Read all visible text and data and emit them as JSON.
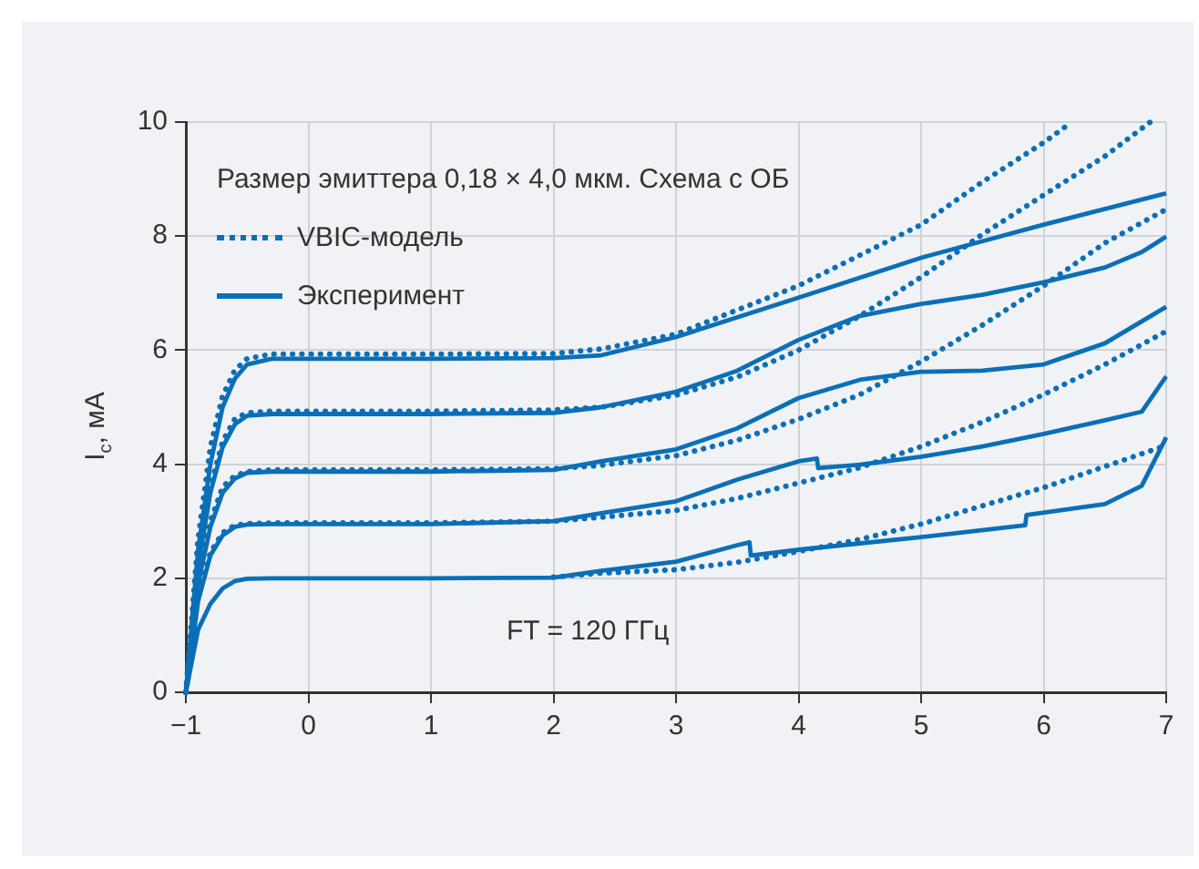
{
  "chart_data": {
    "type": "line",
    "title": "Размер эмиттера 0,18 × 4,0 мкм. Схема с ОБ",
    "ylabel": "I$_{c}$, мА",
    "xlim": [
      -1,
      7
    ],
    "xticks": [
      {
        "value": -1,
        "label": "−1"
      },
      0,
      1,
      2,
      3,
      4,
      5,
      6,
      7
    ],
    "ylim": [
      0,
      10
    ],
    "yticks": [
      0,
      2,
      4,
      6,
      8,
      10
    ],
    "grid": true,
    "legend": "top left",
    "marker": "none",
    "annotations": [
      "FT = 120 ГГц"
    ],
    "series": [
      {
        "name": "VBIC-модель",
        "color": "#0b6fb8",
        "line_style": "dotted",
        "x": [
          -1,
          -0.9,
          -0.8,
          -0.7,
          -0.6,
          -0.5,
          -0.3,
          0,
          1,
          2,
          2.39,
          3,
          4,
          5,
          5.5,
          6,
          6.23
        ],
        "values": [
          0,
          2.7,
          4.3,
          5.2,
          5.65,
          5.85,
          5.93,
          5.93,
          5.93,
          5.94,
          6.02,
          6.28,
          7.13,
          8.2,
          8.95,
          9.64,
          10
        ]
      },
      {
        "name": "Эксперимент",
        "color": "#0b6fb8",
        "line_style": "solid",
        "x": [
          -1,
          -0.9,
          -0.8,
          -0.7,
          -0.6,
          -0.5,
          -0.3,
          0,
          1,
          2,
          2.39,
          3,
          4,
          5,
          6,
          7
        ],
        "values": [
          0,
          2.5,
          4.0,
          5.0,
          5.5,
          5.75,
          5.85,
          5.85,
          5.85,
          5.86,
          5.91,
          6.23,
          6.92,
          7.62,
          8.2,
          8.75
        ]
      },
      {
        "color": "#0b6fb8",
        "line_style": "dotted",
        "x": [
          -1,
          -0.9,
          -0.8,
          -0.7,
          -0.6,
          -0.5,
          -0.3,
          0,
          1,
          2,
          2.39,
          3,
          3.5,
          4,
          4.5,
          5,
          5.5,
          6,
          6.5,
          6.87
        ],
        "values": [
          0,
          2.3,
          3.6,
          4.4,
          4.8,
          4.9,
          4.93,
          4.93,
          4.93,
          4.95,
          5.0,
          5.21,
          5.53,
          6.0,
          6.6,
          7.28,
          8.03,
          8.72,
          9.4,
          10
        ]
      },
      {
        "color": "#0b6fb8",
        "line_style": "solid",
        "x": [
          -1,
          -0.9,
          -0.8,
          -0.7,
          -0.6,
          -0.5,
          -0.3,
          0,
          1,
          2,
          2.39,
          3,
          3.5,
          4,
          4.5,
          5,
          5.5,
          6,
          6.5,
          6.8,
          7
        ],
        "values": [
          0,
          2.2,
          3.5,
          4.3,
          4.7,
          4.85,
          4.88,
          4.88,
          4.88,
          4.9,
          5.0,
          5.27,
          5.64,
          6.18,
          6.6,
          6.81,
          6.97,
          7.19,
          7.45,
          7.72,
          7.99
        ]
      },
      {
        "color": "#0b6fb8",
        "line_style": "dotted",
        "x": [
          -1,
          -0.9,
          -0.8,
          -0.7,
          -0.6,
          -0.5,
          -0.3,
          0,
          1,
          2,
          2.39,
          3,
          3.5,
          4,
          4.5,
          5,
          5.5,
          6,
          6.5,
          7
        ],
        "values": [
          0,
          2.0,
          3.0,
          3.6,
          3.8,
          3.87,
          3.9,
          3.9,
          3.9,
          3.92,
          3.98,
          4.15,
          4.42,
          4.79,
          5.22,
          5.8,
          6.44,
          7.13,
          7.88,
          8.47
        ]
      },
      {
        "color": "#0b6fb8",
        "line_style": "solid",
        "x": [
          -1,
          -0.9,
          -0.8,
          -0.7,
          -0.6,
          -0.5,
          -0.3,
          0,
          1,
          2,
          2.39,
          3,
          3.5,
          4,
          4.5,
          5,
          5.5,
          6,
          6.5,
          7
        ],
        "values": [
          0,
          1.9,
          2.9,
          3.5,
          3.75,
          3.85,
          3.87,
          3.87,
          3.87,
          3.9,
          4.05,
          4.26,
          4.63,
          5.16,
          5.48,
          5.62,
          5.64,
          5.75,
          6.12,
          6.76
        ]
      },
      {
        "color": "#0b6fb8",
        "line_style": "dotted",
        "x": [
          -1,
          -0.9,
          -0.8,
          -0.7,
          -0.6,
          -0.5,
          -0.3,
          0,
          1,
          2,
          2.39,
          3,
          3.5,
          4,
          4.5,
          5,
          5.5,
          6,
          6.5,
          7
        ],
        "values": [
          0,
          1.7,
          2.45,
          2.8,
          2.93,
          2.96,
          2.97,
          2.97,
          2.97,
          3.0,
          3.07,
          3.19,
          3.4,
          3.67,
          3.94,
          4.31,
          4.74,
          5.22,
          5.75,
          6.33
        ]
      },
      {
        "color": "#0b6fb8",
        "line_style": "solid",
        "x": [
          -1,
          -0.9,
          -0.8,
          -0.7,
          -0.6,
          -0.5,
          -0.3,
          0,
          1,
          2,
          2.39,
          3,
          3.5,
          4,
          4.15,
          4.16,
          4.5,
          5,
          5.5,
          6,
          6.5,
          6.8,
          7
        ],
        "values": [
          0,
          1.6,
          2.4,
          2.75,
          2.9,
          2.94,
          2.95,
          2.95,
          2.95,
          3.0,
          3.14,
          3.35,
          3.73,
          4.05,
          4.1,
          3.93,
          3.99,
          4.13,
          4.31,
          4.53,
          4.77,
          4.92,
          5.54
        ]
      },
      {
        "color": "#0b6fb8",
        "line_style": "dotted",
        "x": [
          2,
          2.39,
          3,
          3.5,
          4,
          4.5,
          5,
          5.5,
          6,
          6.5,
          7
        ],
        "values": [
          2.02,
          2.09,
          2.15,
          2.28,
          2.47,
          2.68,
          2.95,
          3.27,
          3.59,
          3.96,
          4.33
        ]
      },
      {
        "color": "#0b6fb8",
        "line_style": "solid",
        "x": [
          -1,
          -0.9,
          -0.8,
          -0.7,
          -0.6,
          -0.5,
          -0.3,
          0,
          1,
          2,
          2.39,
          3,
          3.5,
          3.6,
          3.61,
          4,
          5,
          5.85,
          5.86,
          6.5,
          6.8,
          7
        ],
        "values": [
          0,
          1.1,
          1.55,
          1.82,
          1.95,
          1.99,
          2.0,
          2.0,
          2.0,
          2.01,
          2.13,
          2.29,
          2.58,
          2.63,
          2.4,
          2.5,
          2.72,
          2.93,
          3.11,
          3.3,
          3.62,
          4.47
        ]
      }
    ]
  }
}
